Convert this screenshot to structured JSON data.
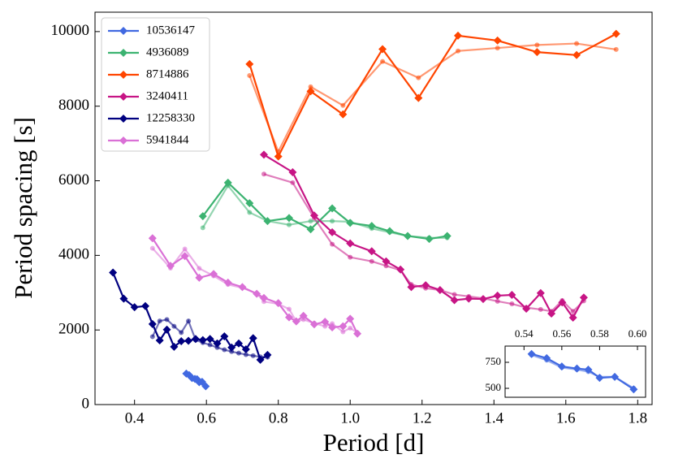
{
  "chart_data": {
    "type": "line",
    "xlabel": "Period [d]",
    "ylabel": "Period spacing [s]",
    "xlim": [
      0.29,
      1.84
    ],
    "ylim": [
      0,
      10520
    ],
    "xticks": [
      0.4,
      0.6,
      0.8,
      {
        "value": 1.0,
        "label": "1.0"
      },
      1.2,
      1.4,
      1.6,
      1.8
    ],
    "yticks": [
      0,
      2000,
      4000,
      6000,
      8000,
      10000
    ],
    "legend": "upper left",
    "series": [
      {
        "name": "10536147",
        "color": "#4169e1",
        "x": [
          0.544,
          0.552,
          0.56,
          0.568,
          0.574,
          0.58,
          0.588,
          0.598
        ],
        "values": [
          830,
          790,
          710,
          690,
          680,
          600,
          610,
          490
        ],
        "model_values": [
          820,
          770,
          700,
          680,
          660,
          610,
          610,
          500
        ]
      },
      {
        "name": "4936089",
        "color": "#3cb371",
        "x": [
          0.59,
          0.66,
          0.72,
          0.77,
          0.83,
          0.89,
          0.95,
          1.0,
          1.06,
          1.11,
          1.16,
          1.22,
          1.27
        ],
        "values": [
          5050,
          5950,
          5400,
          4920,
          5000,
          4700,
          5260,
          4870,
          4790,
          4650,
          4520,
          4440,
          4520
        ],
        "model_values": [
          4740,
          5870,
          5150,
          4920,
          4820,
          4920,
          4920,
          4900,
          4720,
          4620,
          4520,
          4470,
          4470
        ]
      },
      {
        "name": "8714886",
        "color": "#ff4500",
        "x": [
          0.72,
          0.8,
          0.89,
          0.98,
          1.09,
          1.19,
          1.3,
          1.41,
          1.52,
          1.63,
          1.74
        ],
        "values": [
          9130,
          6650,
          8400,
          7780,
          9530,
          8220,
          9890,
          9760,
          9450,
          9370,
          9940
        ],
        "model_values": [
          8820,
          6780,
          8520,
          8020,
          9200,
          8760,
          9480,
          9560,
          9640,
          9680,
          9520
        ]
      },
      {
        "name": "3240411",
        "color": "#c71585",
        "x": [
          0.76,
          0.84,
          0.9,
          0.95,
          1.0,
          1.06,
          1.1,
          1.14,
          1.17,
          1.21,
          1.25,
          1.29,
          1.33,
          1.37,
          1.41,
          1.45,
          1.49,
          1.53,
          1.56,
          1.59,
          1.62,
          1.65
        ],
        "values": [
          6700,
          6230,
          5070,
          4620,
          4320,
          4110,
          3840,
          3620,
          3150,
          3200,
          3070,
          2800,
          2840,
          2830,
          2920,
          2940,
          2570,
          2990,
          2440,
          2740,
          2330,
          2870
        ],
        "model_values": [
          6180,
          5950,
          5000,
          4300,
          3950,
          3840,
          3720,
          3600,
          3220,
          3120,
          3070,
          2950,
          2900,
          2850,
          2770,
          2700,
          2600,
          2550,
          2500,
          2790,
          2500,
          2780
        ]
      },
      {
        "name": "12258330",
        "color": "#000080",
        "x": [
          0.34,
          0.37,
          0.4,
          0.43,
          0.45,
          0.47,
          0.49,
          0.51,
          0.53,
          0.55,
          0.57,
          0.59,
          0.61,
          0.63,
          0.65,
          0.67,
          0.69,
          0.71,
          0.73,
          0.75,
          0.77
        ],
        "values": [
          3540,
          2840,
          2610,
          2640,
          2160,
          1720,
          2010,
          1550,
          1700,
          1710,
          1760,
          1730,
          1760,
          1640,
          1830,
          1530,
          1640,
          1480,
          1780,
          1200,
          1330
        ],
        "model_values": [
          null,
          null,
          null,
          null,
          1820,
          2240,
          2280,
          2100,
          1930,
          2240,
          1730,
          1660,
          1600,
          1530,
          1470,
          1420,
          1380,
          1340,
          1310,
          1280,
          1270
        ]
      },
      {
        "name": "5941844",
        "color": "#da70d6",
        "x": [
          0.45,
          0.5,
          0.54,
          0.58,
          0.62,
          0.66,
          0.7,
          0.74,
          0.76,
          0.8,
          0.83,
          0.85,
          0.87,
          0.9,
          0.93,
          0.95,
          0.98,
          1.0,
          1.02
        ],
        "values": [
          4460,
          3720,
          3980,
          3400,
          3500,
          3270,
          3150,
          2970,
          2860,
          2720,
          2340,
          2230,
          2380,
          2150,
          2220,
          2070,
          2100,
          2300,
          1900
        ],
        "model_values": [
          4190,
          3660,
          4170,
          3650,
          3450,
          3220,
          3130,
          2980,
          2760,
          2700,
          2560,
          2230,
          2280,
          2180,
          2100,
          2170,
          1950,
          2050,
          1930
        ]
      }
    ],
    "inset": {
      "series": 0,
      "xlim": [
        0.53,
        0.6043
      ],
      "ylim": [
        414,
        906
      ],
      "xticks": [
        0.54,
        0.56,
        0.58,
        {
          "value": 0.6,
          "label": "0.60"
        }
      ],
      "yticks": [
        500,
        750
      ]
    }
  }
}
